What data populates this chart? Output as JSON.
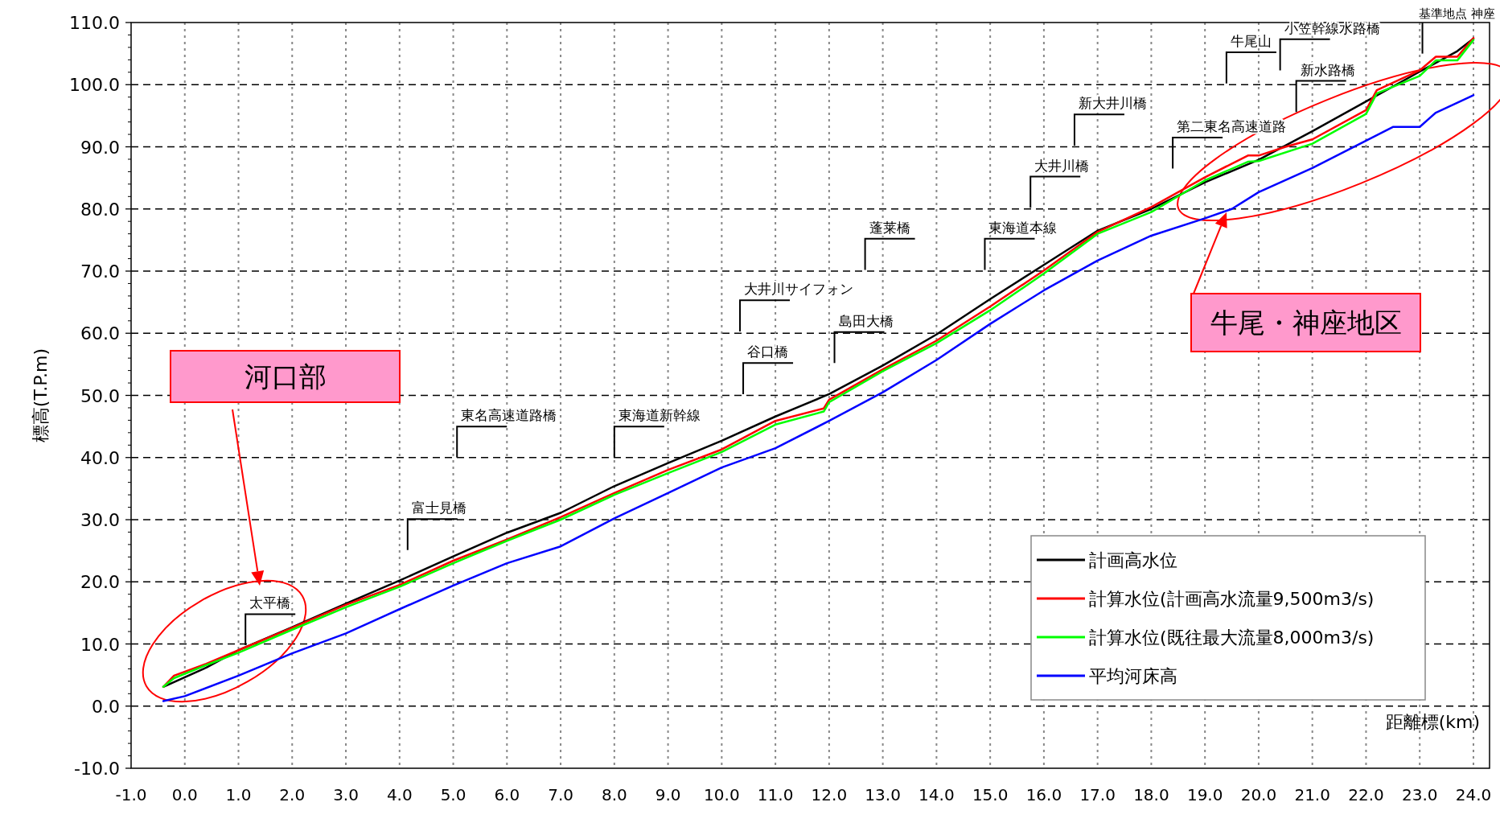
{
  "chart_data": {
    "type": "line",
    "xlabel": "距離標(km)",
    "ylabel": "標高(T.P.m)",
    "xlim": [
      -1,
      24.3
    ],
    "ylim": [
      -10,
      110
    ],
    "xticks": [
      {
        "value": -1,
        "label": "-1.0"
      },
      {
        "value": 0,
        "label": "0.0"
      },
      {
        "value": 1,
        "label": "1.0"
      },
      {
        "value": 2,
        "label": "2.0"
      },
      {
        "value": 3,
        "label": "3.0"
      },
      {
        "value": 4,
        "label": "4.0"
      },
      {
        "value": 5,
        "label": "5.0"
      },
      {
        "value": 6,
        "label": "6.0"
      },
      {
        "value": 7,
        "label": "7.0"
      },
      {
        "value": 8,
        "label": "8.0"
      },
      {
        "value": 9,
        "label": "9.0"
      },
      {
        "value": 10,
        "label": "10.0"
      },
      {
        "value": 11,
        "label": "11.0"
      },
      {
        "value": 12,
        "label": "12.0"
      },
      {
        "value": 13,
        "label": "13.0"
      },
      {
        "value": 14,
        "label": "14.0"
      },
      {
        "value": 15,
        "label": "15.0"
      },
      {
        "value": 16,
        "label": "16.0"
      },
      {
        "value": 17,
        "label": "17.0"
      },
      {
        "value": 18,
        "label": "18.0"
      },
      {
        "value": 19,
        "label": "19.0"
      },
      {
        "value": 20,
        "label": "20.0"
      },
      {
        "value": 21,
        "label": "21.0"
      },
      {
        "value": 22,
        "label": "22.0"
      },
      {
        "value": 23,
        "label": "23.0"
      },
      {
        "value": 24,
        "label": "24.0"
      }
    ],
    "yticks": [
      {
        "value": -10,
        "label": "-10.0"
      },
      {
        "value": 0,
        "label": "0.0"
      },
      {
        "value": 10,
        "label": "10.0"
      },
      {
        "value": 20,
        "label": "20.0"
      },
      {
        "value": 30,
        "label": "30.0"
      },
      {
        "value": 40,
        "label": "40.0"
      },
      {
        "value": 50,
        "label": "50.0"
      },
      {
        "value": 60,
        "label": "60.0"
      },
      {
        "value": 70,
        "label": "70.0"
      },
      {
        "value": 80,
        "label": "80.0"
      },
      {
        "value": 90,
        "label": "90.0"
      },
      {
        "value": 100,
        "label": "100.0"
      },
      {
        "value": 110,
        "label": "110.0"
      }
    ],
    "grid": true,
    "legend": "bottom right",
    "marker": "none",
    "line_style": "solid",
    "series": [
      {
        "name": "計画高水位",
        "color": "#000000",
        "x": [
          -0.4,
          0.4,
          1,
          2,
          3,
          4,
          5,
          6,
          7,
          8,
          9,
          10,
          11,
          12,
          13,
          14,
          15,
          16,
          17,
          18,
          19,
          20,
          21,
          22,
          23,
          23.7,
          24
        ],
        "values": [
          3.1,
          6.2,
          9.0,
          12.7,
          16.5,
          20.2,
          24.1,
          27.9,
          31.1,
          35.4,
          39.1,
          42.7,
          46.6,
          50.2,
          54.8,
          59.8,
          65.5,
          71.0,
          76.5,
          80.0,
          84.3,
          87.9,
          92.5,
          97.3,
          102.1,
          105.4,
          107.4
        ]
      },
      {
        "name": "計算水位(計画高水流量9,500m3/s)",
        "color": "#ff0000",
        "x": [
          -0.4,
          -0.2,
          0.4,
          1,
          2,
          3,
          4,
          5,
          6,
          7,
          8,
          9,
          10,
          11,
          11.9,
          12,
          13,
          14,
          15,
          16,
          17,
          18,
          19,
          19.8,
          20,
          20.5,
          21,
          22,
          22.2,
          23,
          23.3,
          23.7,
          24
        ],
        "values": [
          3.1,
          4.9,
          6.8,
          9.0,
          12.6,
          16.3,
          19.5,
          23.4,
          26.8,
          30.4,
          34.3,
          38.0,
          41.3,
          45.9,
          47.9,
          49.3,
          54.2,
          58.8,
          64.3,
          70.1,
          76.3,
          80.3,
          85.1,
          88.6,
          88.6,
          90.0,
          91.2,
          95.9,
          99.1,
          102.3,
          104.5,
          104.5,
          107.5
        ]
      },
      {
        "name": "計算水位(既往最大流量8,000m3/s)",
        "color": "#00ff00",
        "x": [
          -0.4,
          -0.2,
          0.4,
          1,
          2,
          3,
          4,
          5,
          6,
          7,
          8,
          9,
          10,
          11,
          11.9,
          12,
          13,
          14,
          15,
          16,
          17,
          18,
          19,
          19.8,
          20,
          21,
          22,
          22.2,
          23,
          23.3,
          23.7,
          24
        ],
        "values": [
          3.1,
          4.5,
          6.6,
          8.6,
          12.3,
          15.9,
          19.2,
          23.0,
          26.6,
          30.0,
          34.0,
          37.5,
          40.9,
          45.3,
          47.4,
          48.9,
          53.9,
          58.4,
          63.7,
          69.6,
          76.0,
          79.5,
          84.6,
          87.6,
          87.7,
          90.5,
          95.3,
          98.6,
          101.4,
          103.9,
          103.9,
          107.2
        ]
      },
      {
        "name": "平均河床高",
        "color": "#0000ff",
        "x": [
          -0.4,
          0,
          1,
          2,
          3,
          4,
          5,
          6,
          7,
          8,
          9,
          10,
          11,
          12,
          13,
          14,
          15,
          16,
          17,
          18,
          19,
          19.5,
          20,
          21,
          22,
          22.5,
          23,
          23.3,
          24
        ],
        "values": [
          0.8,
          1.6,
          4.9,
          8.5,
          11.7,
          15.6,
          19.4,
          23.0,
          25.7,
          30.2,
          34.3,
          38.4,
          41.5,
          45.9,
          50.5,
          55.7,
          61.5,
          66.9,
          71.7,
          75.7,
          78.5,
          80.0,
          82.7,
          86.6,
          91.0,
          93.2,
          93.2,
          95.5,
          98.3
        ]
      }
    ],
    "annotations": [
      "河口部",
      "牛尾・神座地区",
      {
        "text": "太平橋",
        "x": 1.13,
        "y": 9.8
      },
      "富士見橋",
      "東名高速道路橋",
      "東海道新幹線",
      "谷口橋",
      "大井川サイフォン",
      "島田大橋",
      "蓬莱橋",
      "東海道本線",
      "大井川橋",
      "新大井川橋",
      "第二東名高速道路",
      "牛尾山",
      "新水路橋",
      "小笠幹線水路橋",
      "基準地点 神座"
    ]
  }
}
